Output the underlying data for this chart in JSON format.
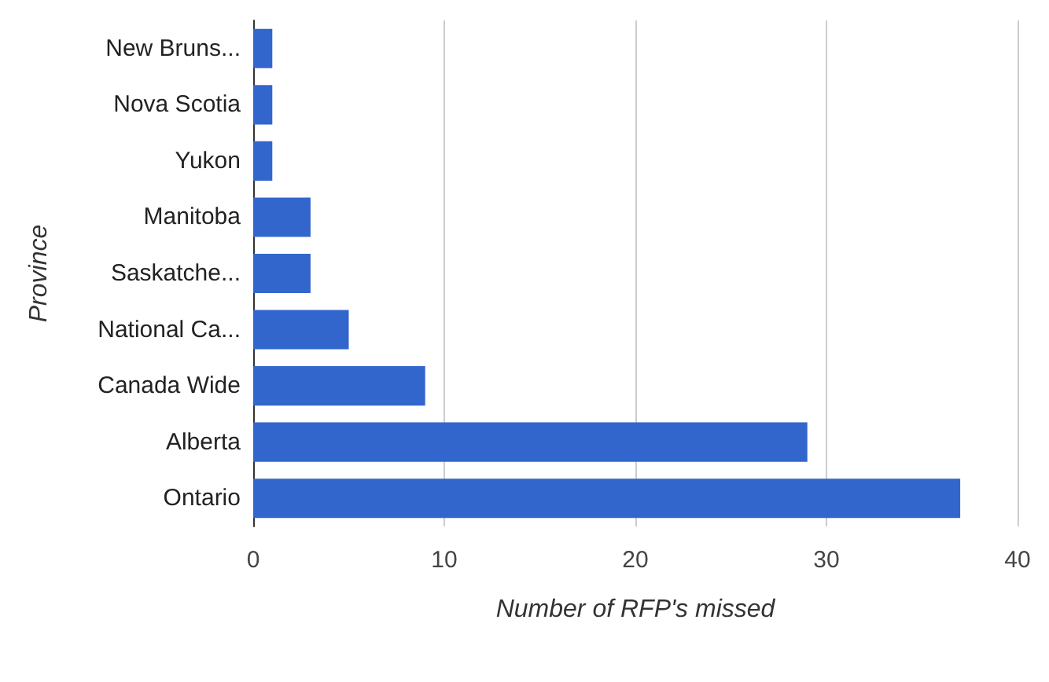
{
  "chart_data": {
    "type": "bar",
    "orientation": "horizontal",
    "xlabel": "Number of RFP's missed",
    "ylabel": "Province",
    "categories": [
      "New Bruns...",
      "Nova Scotia",
      "Yukon",
      "Manitoba",
      "Saskatche...",
      "National Ca...",
      "Canada Wide",
      "Alberta",
      "Ontario"
    ],
    "values": [
      1,
      1,
      1,
      3,
      3,
      5,
      9,
      29,
      37
    ],
    "color": "#3366cc",
    "xlim": [
      0,
      40
    ],
    "xticks": [
      0,
      10,
      20,
      30,
      40
    ],
    "grid": "x"
  }
}
